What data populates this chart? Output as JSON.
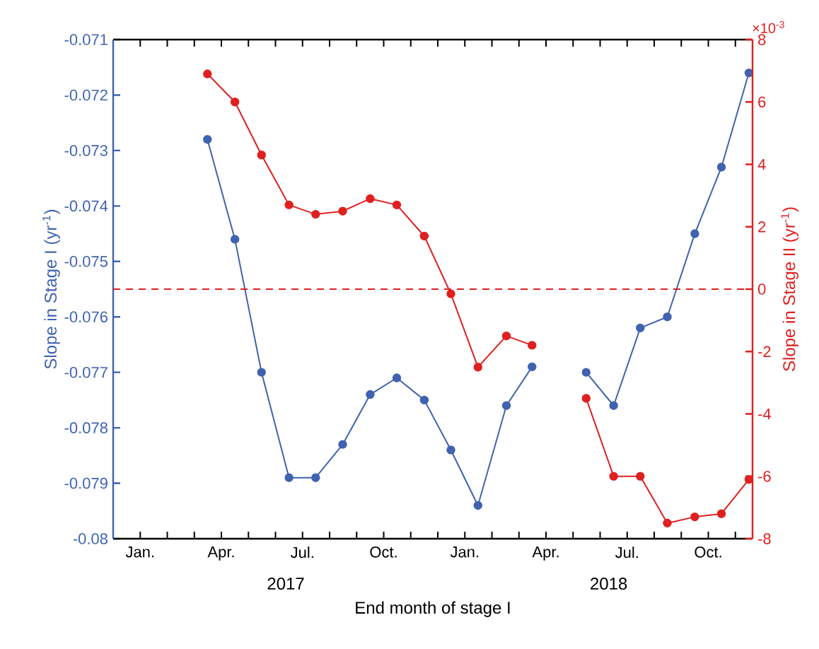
{
  "chart_data": {
    "type": "line",
    "xlabel": "End month of stage I",
    "ylabel": "Slope in Stage I (yr$^{-1}$)",
    "y2label": "Slope in Stage II (yr$^{-1}$)",
    "annotations": [
      "×10$^{-3}$",
      "2017",
      "2018"
    ],
    "x": [
      "2017-03-16",
      "2017-04-16",
      "2017-05-16",
      "2017-06-16",
      "2017-07-16",
      "2017-08-16",
      "2017-09-16",
      "2017-10-16",
      "2017-11-16",
      "2017-12-16",
      "2018-01-16",
      "2018-02-16",
      "2018-03-16",
      "2018-04-16",
      "2018-05-16",
      "2018-06-16",
      "2018-07-16",
      "2018-08-16",
      "2018-09-16",
      "2018-10-16",
      "2018-11-16"
    ],
    "series": [
      {
        "color": "#4062b0",
        "values": [
          -0.0728,
          -0.0746,
          -0.077,
          -0.0789,
          -0.0789,
          -0.0783,
          -0.0774,
          -0.0771,
          -0.0775,
          -0.0784,
          -0.0794,
          -0.0776,
          -0.0769,
          null,
          -0.077,
          -0.0776,
          -0.0762,
          -0.076,
          -0.0745,
          -0.0733,
          -0.0716
        ]
      },
      {
        "color": "#e02020",
        "axis": "y2",
        "values": [
          6.9,
          6.0,
          4.3,
          2.7,
          2.4,
          2.5,
          2.9,
          2.7,
          1.7,
          -0.15,
          -2.5,
          -1.5,
          -1.8,
          null,
          -3.5,
          -6.0,
          -6.0,
          -7.5,
          -7.3,
          -7.2,
          -6.1
        ]
      }
    ],
    "xlim": [
      "2016-12-01",
      "2018-11-20"
    ],
    "xticks": [
      {
        "value": "2017-01",
        "label": "Jan."
      },
      {
        "value": "2017-02",
        "label": null
      },
      {
        "value": "2017-03",
        "label": null
      },
      {
        "value": "2017-04",
        "label": "Apr."
      },
      {
        "value": "2017-05",
        "label": null
      },
      {
        "value": "2017-06",
        "label": null
      },
      {
        "value": "2017-07",
        "label": "Jul."
      },
      {
        "value": "2017-08",
        "label": null
      },
      {
        "value": "2017-09",
        "label": null
      },
      {
        "value": "2017-10",
        "label": "Oct."
      },
      {
        "value": "2017-11",
        "label": null
      },
      {
        "value": "2017-12",
        "label": null
      },
      {
        "value": "2018-01",
        "label": "Jan."
      },
      {
        "value": "2018-02",
        "label": null
      },
      {
        "value": "2018-03",
        "label": null
      },
      {
        "value": "2018-04",
        "label": "Apr."
      },
      {
        "value": "2018-05",
        "label": null
      },
      {
        "value": "2018-06",
        "label": null
      },
      {
        "value": "2018-07",
        "label": "Jul."
      },
      {
        "value": "2018-08",
        "label": null
      },
      {
        "value": "2018-09",
        "label": null
      },
      {
        "value": "2018-10",
        "label": "Oct."
      },
      {
        "value": "2018-11",
        "label": null
      }
    ],
    "ylim": [
      -0.08,
      -0.071
    ],
    "yticks": [
      -0.08,
      -0.079,
      -0.078,
      -0.077,
      -0.076,
      -0.075,
      -0.074,
      -0.073,
      -0.072,
      -0.071
    ],
    "y2lim": [
      -8,
      8
    ],
    "y2ticks": [
      -8,
      -6,
      -4,
      -2,
      0,
      2,
      4,
      6,
      8
    ],
    "ref_lines": [
      {
        "axis": "y2",
        "value": 0,
        "color": "#e02020",
        "line_style": "dashed"
      }
    ],
    "marker": "circle",
    "line_style": "solid"
  }
}
